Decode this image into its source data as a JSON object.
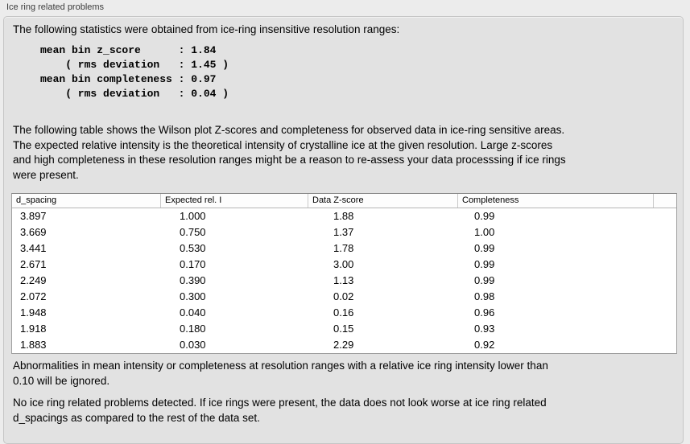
{
  "panel": {
    "title": "Ice ring related problems"
  },
  "intro": "The following statistics were obtained from ice-ring insensitive resolution ranges:",
  "stats_block": "mean bin z_score      : 1.84\n    ( rms deviation   : 1.45 )\nmean bin completeness : 0.97\n    ( rms deviation   : 0.04 )",
  "stats": {
    "mean_bin_z_score": "1.84",
    "z_score_rms_deviation": "1.45",
    "mean_bin_completeness": "0.97",
    "completeness_rms_deviation": "0.04"
  },
  "table_intro": "The following table shows the Wilson plot Z-scores and completeness for observed data in ice-ring sensitive areas.\nThe expected relative intensity is the theoretical intensity of crystalline ice at the given resolution. Large z-scores\nand high completeness in these resolution ranges might be a reason to re-assess your data processsing if ice rings\nwere present.",
  "table": {
    "columns": [
      "d_spacing",
      "Expected rel. I",
      "Data Z-score",
      "Completeness"
    ],
    "rows": [
      [
        "3.897",
        "1.000",
        "1.88",
        "0.99"
      ],
      [
        "3.669",
        "0.750",
        "1.37",
        "1.00"
      ],
      [
        "3.441",
        "0.530",
        "1.78",
        "0.99"
      ],
      [
        "2.671",
        "0.170",
        "3.00",
        "0.99"
      ],
      [
        "2.249",
        "0.390",
        "1.13",
        "0.99"
      ],
      [
        "2.072",
        "0.300",
        "0.02",
        "0.98"
      ],
      [
        "1.948",
        "0.040",
        "0.16",
        "0.96"
      ],
      [
        "1.918",
        "0.180",
        "0.15",
        "0.93"
      ],
      [
        "1.883",
        "0.030",
        "2.29",
        "0.92"
      ]
    ]
  },
  "note_ignore": "Abnormalities in mean intensity or completeness at resolution ranges with a relative ice ring intensity lower than\n0.10 will be ignored.",
  "conclusion": "No ice ring related problems detected. If ice rings were present, the data does not look worse at ice ring related\nd_spacings as compared to the rest of the data set.",
  "colors": {
    "page_background": "#ececec",
    "groupbox_background": "#e2e2e2",
    "groupbox_border": "#c5c5c5",
    "table_background": "#ffffff",
    "table_border": "#9e9e9e",
    "text": "#000000"
  }
}
